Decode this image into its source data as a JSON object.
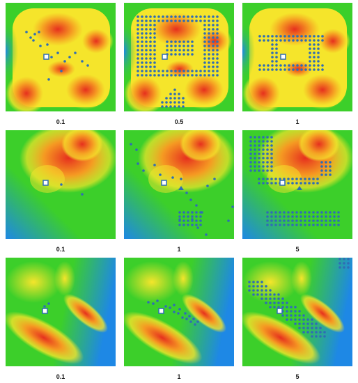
{
  "figure": {
    "rows": [
      {
        "panels": [
          {
            "map": "terrain-A",
            "caption": "0.1"
          },
          {
            "map": "terrain-A",
            "caption": "0.5"
          },
          {
            "map": "terrain-A",
            "caption": "1"
          }
        ]
      },
      {
        "panels": [
          {
            "map": "terrain-B",
            "caption": "0.1"
          },
          {
            "map": "terrain-B",
            "caption": "1"
          },
          {
            "map": "terrain-B",
            "caption": "5"
          }
        ]
      },
      {
        "panels": [
          {
            "map": "terrain-C",
            "caption": "0.1"
          },
          {
            "map": "terrain-C",
            "caption": "1"
          },
          {
            "map": "terrain-C",
            "caption": "5"
          }
        ]
      }
    ],
    "colors": {
      "low": "#1e88e5",
      "mid": "#3ccf2a",
      "high": "#f5e52b",
      "peak": "#e6301e",
      "points": "#2f6db5",
      "marker": "#ffffff"
    }
  }
}
